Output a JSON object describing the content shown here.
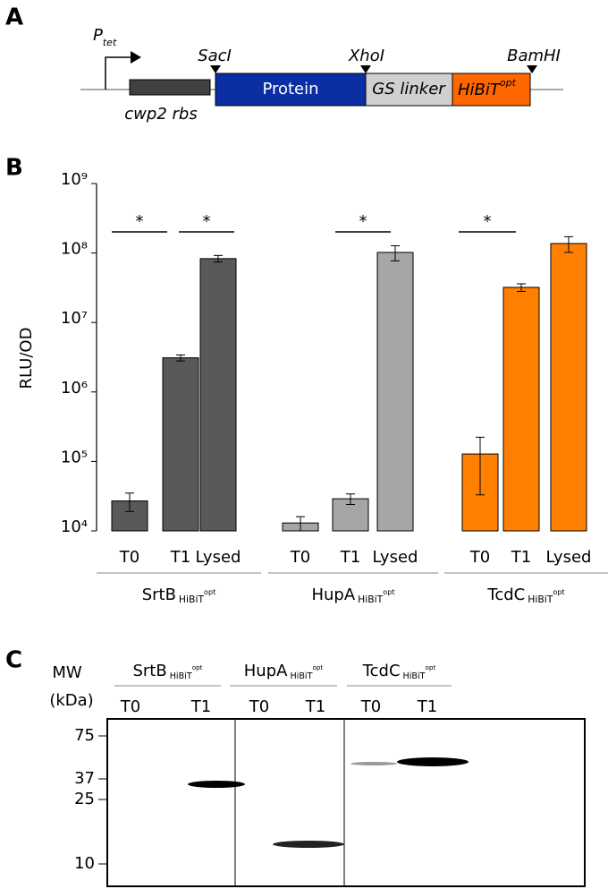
{
  "panel_a": {
    "label": "A",
    "promoter": "P",
    "promoter_sub": "tet",
    "sites": [
      "SacI",
      "XhoI",
      "BamHI"
    ],
    "rbs": "cwp2 rbs",
    "protein": "Protein",
    "linker": "GS linker",
    "tag": "HiBiT",
    "tag_sup": "opt"
  },
  "chart_data": {
    "type": "bar",
    "panel_label": "B",
    "y_label": "RLU/OD",
    "log_scale": true,
    "ylim": [
      10000,
      1000000000
    ],
    "yticks": [
      {
        "value": 10000,
        "label": "10⁴"
      },
      {
        "value": 100000,
        "label": "10⁵"
      },
      {
        "value": 1000000,
        "label": "10⁶"
      },
      {
        "value": 10000000,
        "label": "10⁷"
      },
      {
        "value": 100000000,
        "label": "10⁸"
      },
      {
        "value": 1000000000,
        "label": "10⁹"
      }
    ],
    "groups": [
      {
        "name": "SrtB",
        "subscript": "HiBiT",
        "superscript": "opt",
        "color": "#595959",
        "categories": [
          "T0",
          "T1",
          "Lysed"
        ],
        "values": [
          27000,
          3100000,
          83000000
        ],
        "errors": [
          8000,
          300000,
          9000000
        ]
      },
      {
        "name": "HupA",
        "subscript": "HiBiT",
        "superscript": "opt",
        "color": "#a6a6a9",
        "categories": [
          "T0",
          "T1",
          "Lysed"
        ],
        "values": [
          13000,
          29000,
          102000000
        ],
        "errors": [
          3000,
          5000,
          25000000
        ]
      },
      {
        "name": "TcdC",
        "subscript": "HiBiT",
        "superscript": "opt",
        "color": "#ff7f00",
        "categories": [
          "T0",
          "T1",
          "Lysed"
        ],
        "values": [
          128000,
          32000000,
          137000000
        ],
        "errors": [
          95000,
          4000000,
          35000000
        ]
      }
    ],
    "significance": [
      "*",
      "*",
      "*",
      "*"
    ]
  },
  "panel_c": {
    "label": "C",
    "mw": "MW",
    "unit": "(kDa)",
    "groups": [
      {
        "name": "SrtB",
        "subscript": "HiBiT",
        "superscript": "opt",
        "lanes": [
          "T0",
          "T1"
        ]
      },
      {
        "name": "HupA",
        "subscript": "HiBiT",
        "superscript": "opt",
        "lanes": [
          "T0",
          "T1"
        ]
      },
      {
        "name": "TcdC",
        "subscript": "HiBiT",
        "superscript": "opt",
        "lanes": [
          "T0",
          "T1"
        ]
      }
    ],
    "markers": [
      "75",
      "37",
      "25",
      "10"
    ]
  }
}
